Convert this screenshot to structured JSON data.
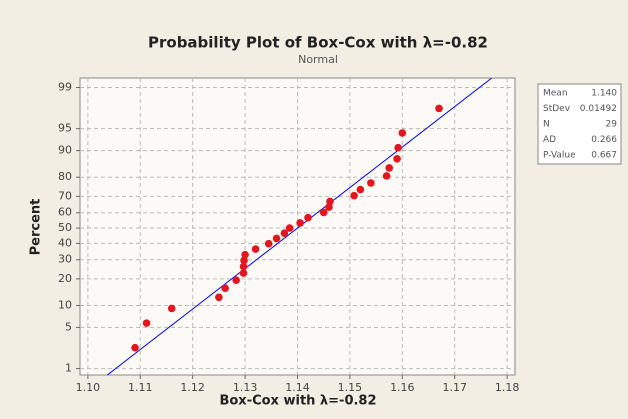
{
  "chart_data": {
    "type": "probability-plot",
    "title": "Probability Plot of Box-Cox with λ=-0.82",
    "subtitle": "Normal",
    "x_label": "Box-Cox with λ=-0.82",
    "y_label": "Percent",
    "x": [
      1.109,
      1.1112,
      1.116,
      1.125,
      1.1262,
      1.1283,
      1.1297,
      1.1297,
      1.1298,
      1.13,
      1.132,
      1.1345,
      1.136,
      1.1375,
      1.1385,
      1.1405,
      1.142,
      1.145,
      1.146,
      1.1462,
      1.1508,
      1.152,
      1.154,
      1.157,
      1.1575,
      1.159,
      1.1592,
      1.16,
      1.167
    ],
    "values": [
      2.38,
      5.78,
      9.18,
      12.59,
      15.99,
      19.39,
      22.79,
      26.19,
      29.59,
      32.99,
      36.39,
      39.8,
      43.2,
      46.6,
      50.0,
      53.4,
      56.8,
      60.2,
      63.61,
      67.01,
      70.41,
      73.81,
      77.21,
      80.61,
      84.01,
      87.41,
      90.82,
      94.22,
      97.62
    ],
    "color": "#e3161d",
    "line_color": "#0000ff",
    "xlim": [
      1.0985,
      1.1815
    ],
    "xticks": [
      {
        "value": 1.1,
        "label": "1.10"
      },
      1.11,
      1.12,
      1.13,
      1.14,
      1.15,
      1.16,
      1.17,
      1.18
    ],
    "ylim": [
      0.75,
      99.35
    ],
    "yticks": [
      1,
      5,
      10,
      20,
      30,
      40,
      50,
      60,
      70,
      80,
      90,
      95,
      99
    ],
    "y_scale": "normal-probability",
    "grid": true,
    "stats": [
      {
        "name": "Mean",
        "value": 1.14,
        "label": "1.140"
      },
      {
        "name": "StDev",
        "value": 0.01492,
        "label": "0.01492"
      },
      {
        "name": "N",
        "value": 29
      },
      {
        "name": "AD",
        "value": 0.266,
        "label": "0.266"
      },
      {
        "name": "P-Value",
        "value": 0.667,
        "label": "0.667"
      }
    ]
  }
}
